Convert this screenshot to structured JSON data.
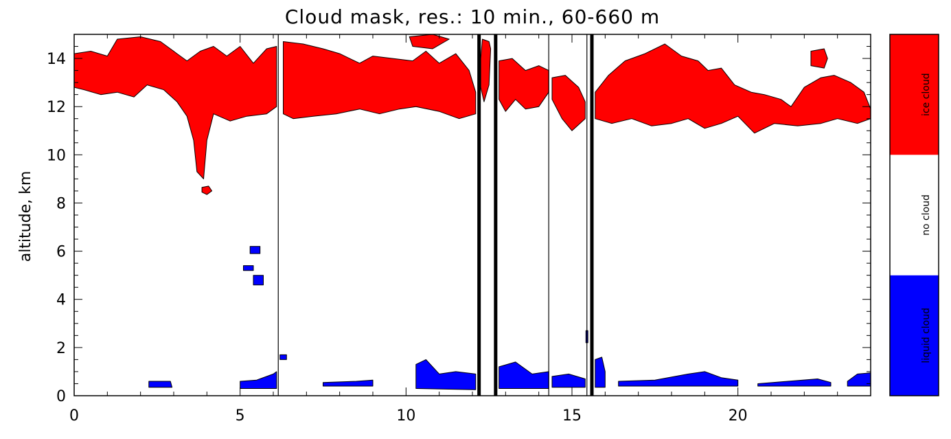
{
  "chart_data": {
    "type": "heatmap",
    "title": "Cloud mask, res.: 10 min., 60-660 m",
    "xlabel": "",
    "ylabel": "altitude, km",
    "xlim": [
      0,
      24
    ],
    "ylim": [
      0,
      15
    ],
    "x_ticks": [
      {
        "value": 0,
        "label": "0"
      },
      {
        "value": 5,
        "label": "5"
      },
      {
        "value": 10,
        "label": "10"
      },
      {
        "value": 15,
        "label": "15"
      },
      {
        "value": 20,
        "label": "20"
      }
    ],
    "y_ticks": [
      {
        "value": 0,
        "label": "0"
      },
      {
        "value": 2,
        "label": "2"
      },
      {
        "value": 4,
        "label": "4"
      },
      {
        "value": 6,
        "label": "6"
      },
      {
        "value": 8,
        "label": "8"
      },
      {
        "value": 10,
        "label": "10"
      },
      {
        "value": 12,
        "label": "12"
      },
      {
        "value": 14,
        "label": "14"
      }
    ],
    "classes": [
      {
        "name": "liquid cloud",
        "color": "#0000ff"
      },
      {
        "name": "no cloud",
        "color": "#ffffff"
      },
      {
        "name": "ice cloud",
        "color": "#ff0000"
      }
    ],
    "vertical_lines": [
      {
        "x": 6.15,
        "style": "thin"
      },
      {
        "x": 12.2,
        "style": "thick"
      },
      {
        "x": 12.7,
        "style": "thick"
      },
      {
        "x": 14.3,
        "style": "thin"
      },
      {
        "x": 15.45,
        "style": "thin"
      },
      {
        "x": 15.6,
        "style": "thick"
      }
    ],
    "regions": [
      {
        "class": "ice cloud",
        "label": "ice cloud layer 0-6 h",
        "points": [
          [
            0,
            14.2
          ],
          [
            0.5,
            14.3
          ],
          [
            1.0,
            14.1
          ],
          [
            1.3,
            14.8
          ],
          [
            2.0,
            14.9
          ],
          [
            2.6,
            14.7
          ],
          [
            3.1,
            14.2
          ],
          [
            3.4,
            13.9
          ],
          [
            3.8,
            14.3
          ],
          [
            4.2,
            14.5
          ],
          [
            4.6,
            14.1
          ],
          [
            5.0,
            14.5
          ],
          [
            5.4,
            13.8
          ],
          [
            5.8,
            14.4
          ],
          [
            6.1,
            14.5
          ],
          [
            6.1,
            12.0
          ],
          [
            5.8,
            11.7
          ],
          [
            5.2,
            11.6
          ],
          [
            4.7,
            11.4
          ],
          [
            4.2,
            11.7
          ],
          [
            4.0,
            10.6
          ],
          [
            3.9,
            9.0
          ],
          [
            3.7,
            9.3
          ],
          [
            3.6,
            10.6
          ],
          [
            3.4,
            11.6
          ],
          [
            3.1,
            12.2
          ],
          [
            2.7,
            12.7
          ],
          [
            2.2,
            12.9
          ],
          [
            1.8,
            12.4
          ],
          [
            1.3,
            12.6
          ],
          [
            0.8,
            12.5
          ],
          [
            0.3,
            12.7
          ],
          [
            0,
            12.8
          ]
        ]
      },
      {
        "class": "ice cloud",
        "label": "ice blob 4.0 h, 8.5 km",
        "points": [
          [
            3.85,
            8.65
          ],
          [
            4.05,
            8.7
          ],
          [
            4.15,
            8.5
          ],
          [
            4.0,
            8.35
          ],
          [
            3.85,
            8.45
          ]
        ]
      },
      {
        "class": "ice cloud",
        "label": "ice cloud layer 6-12 h",
        "points": [
          [
            6.3,
            14.7
          ],
          [
            6.9,
            14.6
          ],
          [
            7.5,
            14.4
          ],
          [
            8.0,
            14.2
          ],
          [
            8.6,
            13.8
          ],
          [
            9.0,
            14.1
          ],
          [
            9.6,
            14.0
          ],
          [
            10.2,
            13.9
          ],
          [
            10.6,
            14.3
          ],
          [
            11.0,
            13.8
          ],
          [
            11.5,
            14.2
          ],
          [
            11.9,
            13.5
          ],
          [
            12.1,
            12.6
          ],
          [
            12.1,
            11.7
          ],
          [
            11.6,
            11.5
          ],
          [
            11.0,
            11.8
          ],
          [
            10.3,
            12.0
          ],
          [
            9.8,
            11.9
          ],
          [
            9.2,
            11.7
          ],
          [
            8.6,
            11.9
          ],
          [
            7.9,
            11.7
          ],
          [
            7.2,
            11.6
          ],
          [
            6.6,
            11.5
          ],
          [
            6.3,
            11.7
          ]
        ]
      },
      {
        "class": "ice cloud",
        "label": "ice top 11.5 h",
        "points": [
          [
            10.1,
            14.9
          ],
          [
            10.8,
            15.0
          ],
          [
            11.3,
            14.8
          ],
          [
            10.8,
            14.4
          ],
          [
            10.2,
            14.5
          ]
        ]
      },
      {
        "class": "ice cloud",
        "label": "ice 12.2-12.6 h",
        "points": [
          [
            12.3,
            14.8
          ],
          [
            12.5,
            14.7
          ],
          [
            12.55,
            14.4
          ],
          [
            12.5,
            12.9
          ],
          [
            12.35,
            12.2
          ],
          [
            12.25,
            12.8
          ],
          [
            12.25,
            14.0
          ]
        ]
      },
      {
        "class": "ice cloud",
        "label": "ice 12.8-14.3 h",
        "points": [
          [
            12.8,
            13.9
          ],
          [
            13.2,
            14.0
          ],
          [
            13.6,
            13.5
          ],
          [
            14.0,
            13.7
          ],
          [
            14.3,
            13.5
          ],
          [
            14.3,
            12.6
          ],
          [
            14.0,
            12.0
          ],
          [
            13.6,
            11.9
          ],
          [
            13.3,
            12.3
          ],
          [
            13.0,
            11.8
          ],
          [
            12.8,
            12.3
          ]
        ]
      },
      {
        "class": "ice cloud",
        "label": "ice 14.4-15.45 h",
        "points": [
          [
            14.4,
            13.2
          ],
          [
            14.8,
            13.3
          ],
          [
            15.2,
            12.8
          ],
          [
            15.4,
            12.2
          ],
          [
            15.4,
            11.5
          ],
          [
            15.0,
            11.0
          ],
          [
            14.7,
            11.5
          ],
          [
            14.4,
            12.3
          ]
        ]
      },
      {
        "class": "ice cloud",
        "label": "ice cloud layer 15.7-24 h",
        "points": [
          [
            15.7,
            12.6
          ],
          [
            16.1,
            13.3
          ],
          [
            16.6,
            13.9
          ],
          [
            17.2,
            14.2
          ],
          [
            17.8,
            14.6
          ],
          [
            18.3,
            14.1
          ],
          [
            18.8,
            13.9
          ],
          [
            19.1,
            13.5
          ],
          [
            19.5,
            13.6
          ],
          [
            19.9,
            12.9
          ],
          [
            20.4,
            12.6
          ],
          [
            20.8,
            12.5
          ],
          [
            21.3,
            12.3
          ],
          [
            21.6,
            12.0
          ],
          [
            22.0,
            12.8
          ],
          [
            22.5,
            13.2
          ],
          [
            22.9,
            13.3
          ],
          [
            23.4,
            13.0
          ],
          [
            23.8,
            12.6
          ],
          [
            24,
            11.9
          ],
          [
            24,
            11.5
          ],
          [
            23.6,
            11.3
          ],
          [
            23.0,
            11.5
          ],
          [
            22.5,
            11.3
          ],
          [
            21.8,
            11.2
          ],
          [
            21.1,
            11.3
          ],
          [
            20.5,
            10.9
          ],
          [
            20.0,
            11.6
          ],
          [
            19.5,
            11.3
          ],
          [
            19.0,
            11.1
          ],
          [
            18.5,
            11.5
          ],
          [
            18.0,
            11.3
          ],
          [
            17.4,
            11.2
          ],
          [
            16.8,
            11.5
          ],
          [
            16.2,
            11.3
          ],
          [
            15.7,
            11.5
          ]
        ]
      },
      {
        "class": "ice cloud",
        "label": "ice blob 22.4 h, 14 km",
        "points": [
          [
            22.2,
            14.3
          ],
          [
            22.6,
            14.4
          ],
          [
            22.7,
            14.0
          ],
          [
            22.6,
            13.6
          ],
          [
            22.2,
            13.7
          ]
        ]
      },
      {
        "class": "liquid cloud",
        "label": "liquid 5.2-5.6 h, 6 km",
        "points": [
          [
            5.3,
            6.2
          ],
          [
            5.6,
            6.2
          ],
          [
            5.6,
            5.9
          ],
          [
            5.3,
            5.9
          ]
        ]
      },
      {
        "class": "liquid cloud",
        "label": "liquid 5.1-5.4 h, 5.3 km",
        "points": [
          [
            5.1,
            5.4
          ],
          [
            5.4,
            5.4
          ],
          [
            5.4,
            5.2
          ],
          [
            5.1,
            5.2
          ]
        ]
      },
      {
        "class": "liquid cloud",
        "label": "liquid 5.4-5.7 h, 4.8 km",
        "points": [
          [
            5.4,
            5.0
          ],
          [
            5.7,
            5.0
          ],
          [
            5.7,
            4.6
          ],
          [
            5.4,
            4.6
          ]
        ]
      },
      {
        "class": "liquid cloud",
        "label": "liquid 2.2-3.0 h low",
        "points": [
          [
            2.25,
            0.6
          ],
          [
            2.9,
            0.6
          ],
          [
            2.95,
            0.35
          ],
          [
            2.25,
            0.35
          ]
        ]
      },
      {
        "class": "liquid cloud",
        "label": "liquid 5.0-6.1 h low",
        "points": [
          [
            5.0,
            0.6
          ],
          [
            5.5,
            0.65
          ],
          [
            6.0,
            0.9
          ],
          [
            6.1,
            1.0
          ],
          [
            6.1,
            0.3
          ],
          [
            5.0,
            0.3
          ]
        ]
      },
      {
        "class": "liquid cloud",
        "label": "liquid 6.2 h, 1.6 km",
        "points": [
          [
            6.2,
            1.7
          ],
          [
            6.4,
            1.7
          ],
          [
            6.4,
            1.5
          ],
          [
            6.2,
            1.5
          ]
        ]
      },
      {
        "class": "liquid cloud",
        "label": "liquid 7.5-9.0 h low",
        "points": [
          [
            7.5,
            0.55
          ],
          [
            8.5,
            0.6
          ],
          [
            9.0,
            0.65
          ],
          [
            9.0,
            0.4
          ],
          [
            7.5,
            0.4
          ]
        ]
      },
      {
        "class": "liquid cloud",
        "label": "liquid 10.3-12.2 h low",
        "points": [
          [
            10.3,
            1.3
          ],
          [
            10.6,
            1.5
          ],
          [
            11.0,
            0.9
          ],
          [
            11.5,
            1.0
          ],
          [
            12.1,
            0.9
          ],
          [
            12.1,
            0.25
          ],
          [
            10.3,
            0.3
          ]
        ]
      },
      {
        "class": "liquid cloud",
        "label": "liquid 12.8-14.3 h low",
        "points": [
          [
            12.8,
            1.2
          ],
          [
            13.3,
            1.4
          ],
          [
            13.8,
            0.9
          ],
          [
            14.3,
            1.0
          ],
          [
            14.3,
            0.3
          ],
          [
            12.8,
            0.3
          ]
        ]
      },
      {
        "class": "liquid cloud",
        "label": "liquid 14.4-15.4 h low",
        "points": [
          [
            14.4,
            0.8
          ],
          [
            14.9,
            0.9
          ],
          [
            15.4,
            0.7
          ],
          [
            15.4,
            0.35
          ],
          [
            14.4,
            0.35
          ]
        ]
      },
      {
        "class": "liquid cloud",
        "label": "liquid 15.4-15.5 h, 2.5 km",
        "points": [
          [
            15.42,
            2.7
          ],
          [
            15.48,
            2.7
          ],
          [
            15.48,
            2.2
          ],
          [
            15.42,
            2.2
          ]
        ]
      },
      {
        "class": "liquid cloud",
        "label": "liquid 15.7-16.0 h low",
        "points": [
          [
            15.7,
            1.5
          ],
          [
            15.9,
            1.6
          ],
          [
            16.0,
            1.0
          ],
          [
            16.0,
            0.35
          ],
          [
            15.7,
            0.35
          ]
        ]
      },
      {
        "class": "liquid cloud",
        "label": "liquid 16.4-20.0 h low",
        "points": [
          [
            16.4,
            0.6
          ],
          [
            17.5,
            0.65
          ],
          [
            18.5,
            0.9
          ],
          [
            19.0,
            1.0
          ],
          [
            19.5,
            0.75
          ],
          [
            20.0,
            0.65
          ],
          [
            20.0,
            0.4
          ],
          [
            16.4,
            0.4
          ]
        ]
      },
      {
        "class": "liquid cloud",
        "label": "liquid 20.6-22.8 h low",
        "points": [
          [
            20.6,
            0.5
          ],
          [
            21.5,
            0.6
          ],
          [
            22.4,
            0.7
          ],
          [
            22.8,
            0.55
          ],
          [
            22.8,
            0.4
          ],
          [
            20.6,
            0.4
          ]
        ]
      },
      {
        "class": "liquid cloud",
        "label": "liquid 23.3-24 h low",
        "points": [
          [
            23.3,
            0.6
          ],
          [
            23.6,
            0.9
          ],
          [
            24,
            0.95
          ],
          [
            24,
            0.4
          ],
          [
            23.3,
            0.4
          ]
        ]
      }
    ],
    "colorbar": {
      "labels": [
        "liquid cloud",
        "no cloud",
        "ice cloud"
      ],
      "colors": [
        "#0000ff",
        "#ffffff",
        "#ff0000"
      ]
    }
  }
}
